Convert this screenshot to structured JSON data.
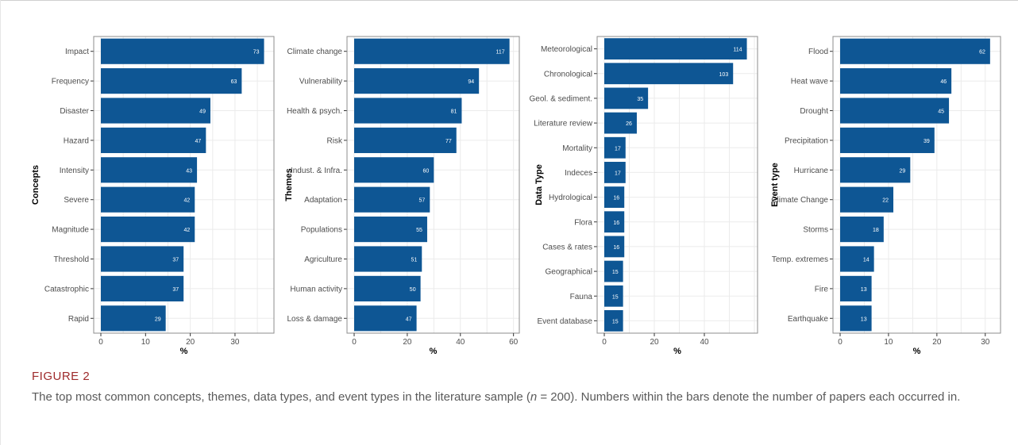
{
  "colors": {
    "bar": "#0e5694",
    "bar_label": "#ffffff",
    "panel_border": "#8c8c8c",
    "grid": "#ebebeb",
    "axis_text": "#4d4d4d"
  },
  "caption": {
    "title": "FIGURE 2",
    "text_before": "The top most common concepts, themes, data types, and event types in the literature sample (",
    "n_symbol": "n",
    "text_after": " = 200). Numbers within the bars denote the number of papers each occurred in."
  },
  "chart_data": [
    {
      "type": "bar",
      "orientation": "horizontal",
      "ylabel": "Concepts",
      "xlabel": "%",
      "xlim": [
        0,
        38
      ],
      "xticks": [
        0,
        10,
        20,
        30
      ],
      "grid": true,
      "categories": [
        "Impact",
        "Frequency",
        "Disaster",
        "Hazard",
        "Intensity",
        "Severe",
        "Magnitude",
        "Threshold",
        "Catastrophic",
        "Rapid"
      ],
      "values": [
        36.5,
        31.5,
        24.5,
        23.5,
        21.5,
        21,
        21,
        18.5,
        18.5,
        14.5
      ],
      "bar_labels": [
        "73",
        "63",
        "49",
        "47",
        "43",
        "42",
        "42",
        "37",
        "37",
        "29"
      ]
    },
    {
      "type": "bar",
      "orientation": "horizontal",
      "ylabel": "Themes",
      "xlabel": "%",
      "xlim": [
        0,
        61
      ],
      "xticks": [
        0,
        20,
        40,
        60
      ],
      "grid": true,
      "categories": [
        "Climate change",
        "Vulnerability",
        "Health & psych.",
        "Risk",
        "Indust. & Infra.",
        "Adaptation",
        "Populations",
        "Agriculture",
        "Human activity",
        "Loss & damage"
      ],
      "values": [
        58.5,
        47,
        40.5,
        38.5,
        30,
        28.5,
        27.5,
        25.5,
        25,
        23.5
      ],
      "bar_labels": [
        "117",
        "94",
        "81",
        "77",
        "60",
        "57",
        "55",
        "51",
        "50",
        "47"
      ]
    },
    {
      "type": "bar",
      "orientation": "horizontal",
      "ylabel": "Data Type",
      "xlabel": "%",
      "xlim": [
        0,
        60
      ],
      "xticks": [
        0,
        20,
        40
      ],
      "grid": true,
      "categories": [
        "Meteorological",
        "Chronological",
        "Geol. & sediment.",
        "Literature review",
        "Mortality",
        "Indeces",
        "Hydrological",
        "Flora",
        "Cases & rates",
        "Geographical",
        "Fauna",
        "Event database"
      ],
      "values": [
        57,
        51.5,
        17.5,
        13,
        8.5,
        8.5,
        8,
        8,
        8,
        7.5,
        7.5,
        7.5
      ],
      "bar_labels": [
        "114",
        "103",
        "35",
        "26",
        "17",
        "17",
        "16",
        "16",
        "16",
        "15",
        "15",
        "15"
      ]
    },
    {
      "type": "bar",
      "orientation": "horizontal",
      "ylabel": "Event type",
      "xlabel": "%",
      "xlim": [
        0,
        32.5
      ],
      "xticks": [
        0,
        10,
        20,
        30
      ],
      "grid": true,
      "categories": [
        "Flood",
        "Heat wave",
        "Drought",
        "Precipitation",
        "Hurricane",
        "Climate Change",
        "Storms",
        "Temp. extremes",
        "Fire",
        "Earthquake"
      ],
      "values": [
        31,
        23,
        22.5,
        19.5,
        14.5,
        11,
        9,
        7,
        6.5,
        6.5
      ],
      "bar_labels": [
        "62",
        "46",
        "45",
        "39",
        "29",
        "22",
        "18",
        "14",
        "13",
        "13"
      ]
    }
  ]
}
